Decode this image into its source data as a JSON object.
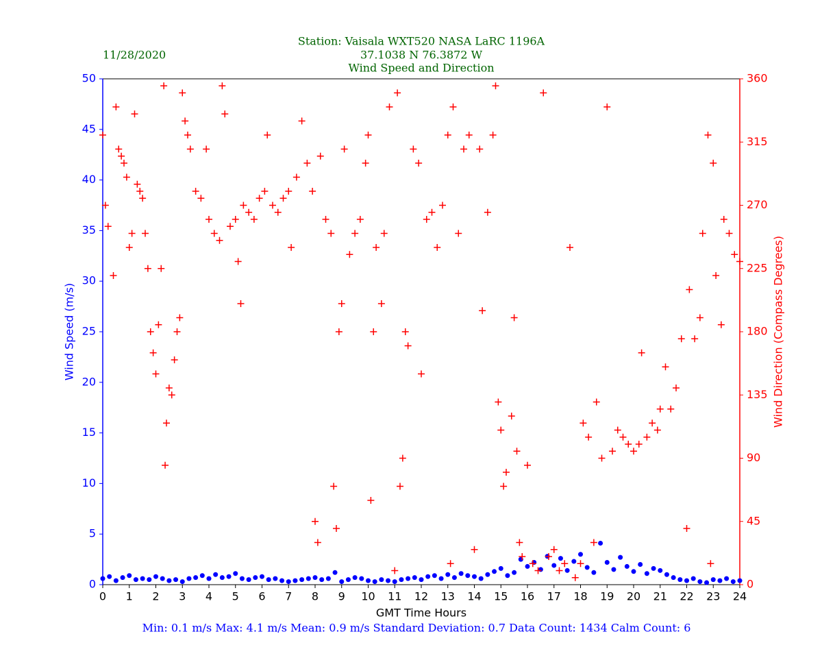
{
  "chart_data": {
    "type": "scatter",
    "title": "Station:  Vaisala WXT520  NASA LaRC 1196A",
    "subtitle": "37.1038 N 76.3872 W",
    "subtitle2": "Wind Speed and Direction",
    "date": "11/28/2020",
    "xlabel": "GMT Time Hours",
    "ylabel": "Wind Speed (m/s)",
    "y2label": "Wind Direction (Compass Degrees)",
    "footer": "Min: 0.1 m/s   Max: 4.1 m/s   Mean: 0.9 m/s  Standard Deviation: 0.7  Data Count: 1434  Calm Count:  6",
    "xlim": [
      0,
      24
    ],
    "xticks": [
      0,
      1,
      2,
      3,
      4,
      5,
      6,
      7,
      8,
      9,
      10,
      11,
      12,
      13,
      14,
      15,
      16,
      17,
      18,
      19,
      20,
      21,
      22,
      23,
      24
    ],
    "ylim": [
      0,
      50
    ],
    "yticks": [
      0,
      5,
      10,
      15,
      20,
      25,
      30,
      35,
      40,
      45,
      50
    ],
    "y2lim": [
      0,
      360
    ],
    "y2ticks": [
      0,
      45,
      90,
      135,
      180,
      225,
      270,
      315,
      360
    ],
    "series": [
      {
        "name": "Wind Speed",
        "color": "#0000ff",
        "marker": "o",
        "axis": "y",
        "x": [
          0,
          0.25,
          0.5,
          0.75,
          1,
          1.25,
          1.5,
          1.75,
          2,
          2.25,
          2.5,
          2.75,
          3,
          3.25,
          3.5,
          3.75,
          4,
          4.25,
          4.5,
          4.75,
          5,
          5.25,
          5.5,
          5.75,
          6,
          6.25,
          6.5,
          6.75,
          7,
          7.25,
          7.5,
          7.75,
          8,
          8.25,
          8.5,
          8.75,
          9,
          9.25,
          9.5,
          9.75,
          10,
          10.25,
          10.5,
          10.75,
          11,
          11.25,
          11.5,
          11.75,
          12,
          12.25,
          12.5,
          12.75,
          13,
          13.25,
          13.5,
          13.75,
          14,
          14.25,
          14.5,
          14.75,
          15,
          15.25,
          15.5,
          15.75,
          16,
          16.25,
          16.5,
          16.75,
          17,
          17.25,
          17.5,
          17.75,
          18,
          18.25,
          18.5,
          18.75,
          19,
          19.25,
          19.5,
          19.75,
          20,
          20.25,
          20.5,
          20.75,
          21,
          21.25,
          21.5,
          21.75,
          22,
          22.25,
          22.5,
          22.75,
          23,
          23.25,
          23.5,
          23.75,
          24
        ],
        "values": [
          0.6,
          0.8,
          0.4,
          0.7,
          0.9,
          0.5,
          0.6,
          0.5,
          0.8,
          0.6,
          0.4,
          0.5,
          0.3,
          0.6,
          0.7,
          0.9,
          0.6,
          1.0,
          0.7,
          0.8,
          1.1,
          0.6,
          0.5,
          0.7,
          0.8,
          0.5,
          0.6,
          0.4,
          0.3,
          0.4,
          0.5,
          0.6,
          0.7,
          0.5,
          0.6,
          1.2,
          0.3,
          0.5,
          0.7,
          0.6,
          0.4,
          0.3,
          0.5,
          0.4,
          0.3,
          0.5,
          0.6,
          0.7,
          0.5,
          0.8,
          0.9,
          0.6,
          1.0,
          0.7,
          1.1,
          0.9,
          0.8,
          0.6,
          1.0,
          1.3,
          1.6,
          0.9,
          1.2,
          2.5,
          1.8,
          2.2,
          1.5,
          2.8,
          1.9,
          2.6,
          1.4,
          2.3,
          3.0,
          1.7,
          1.2,
          4.1,
          2.2,
          1.5,
          2.7,
          1.8,
          1.3,
          2.0,
          1.1,
          1.6,
          1.4,
          1.0,
          0.7,
          0.5,
          0.4,
          0.6,
          0.3,
          0.2,
          0.5,
          0.4,
          0.6,
          0.3,
          0.4
        ]
      },
      {
        "name": "Wind Direction",
        "color": "#ff0000",
        "marker": "+",
        "axis": "y2",
        "x": [
          0.0,
          0.1,
          0.2,
          0.4,
          0.5,
          0.6,
          0.7,
          0.8,
          0.9,
          1.0,
          1.1,
          1.2,
          1.3,
          1.4,
          1.5,
          1.6,
          1.7,
          1.8,
          1.9,
          2.0,
          2.1,
          2.2,
          2.3,
          2.35,
          2.4,
          2.5,
          2.6,
          2.7,
          2.8,
          2.9,
          3.0,
          3.1,
          3.2,
          3.3,
          3.5,
          3.7,
          3.9,
          4.0,
          4.2,
          4.4,
          4.5,
          4.6,
          4.8,
          5.0,
          5.1,
          5.2,
          5.3,
          5.5,
          5.7,
          5.9,
          6.1,
          6.2,
          6.4,
          6.6,
          6.8,
          7.0,
          7.1,
          7.3,
          7.5,
          7.7,
          7.9,
          8.0,
          8.1,
          8.2,
          8.4,
          8.6,
          8.7,
          8.8,
          8.9,
          9.0,
          9.1,
          9.3,
          9.5,
          9.7,
          9.9,
          10.0,
          10.1,
          10.2,
          10.3,
          10.5,
          10.6,
          10.8,
          11.0,
          11.1,
          11.2,
          11.3,
          11.4,
          11.5,
          11.7,
          11.9,
          12.0,
          12.2,
          12.4,
          12.6,
          12.8,
          13.0,
          13.1,
          13.2,
          13.4,
          13.6,
          13.8,
          14.0,
          14.2,
          14.3,
          14.5,
          14.7,
          14.8,
          14.9,
          15.0,
          15.1,
          15.2,
          15.4,
          15.5,
          15.6,
          15.7,
          15.8,
          16.0,
          16.2,
          16.4,
          16.6,
          16.8,
          17.0,
          17.2,
          17.4,
          17.6,
          17.8,
          18.0,
          18.1,
          18.3,
          18.5,
          18.6,
          18.8,
          19.0,
          19.2,
          19.4,
          19.6,
          19.8,
          20.0,
          20.2,
          20.3,
          20.5,
          20.7,
          20.9,
          21.0,
          21.2,
          21.4,
          21.6,
          21.8,
          22.0,
          22.1,
          22.3,
          22.5,
          22.6,
          22.8,
          22.9,
          23.0,
          23.1,
          23.3,
          23.4,
          23.6,
          23.8,
          24.0
        ],
        "values": [
          320,
          270,
          255,
          220,
          340,
          310,
          305,
          300,
          290,
          240,
          250,
          335,
          285,
          280,
          275,
          250,
          225,
          180,
          165,
          150,
          185,
          225,
          355,
          85,
          115,
          140,
          135,
          160,
          180,
          190,
          350,
          330,
          320,
          310,
          280,
          275,
          310,
          260,
          250,
          245,
          355,
          335,
          255,
          260,
          230,
          200,
          270,
          265,
          260,
          275,
          280,
          320,
          270,
          265,
          275,
          280,
          240,
          290,
          330,
          300,
          280,
          45,
          30,
          305,
          260,
          250,
          70,
          40,
          180,
          200,
          310,
          235,
          250,
          260,
          300,
          320,
          60,
          180,
          240,
          200,
          250,
          340,
          10,
          350,
          70,
          90,
          180,
          170,
          310,
          300,
          150,
          260,
          265,
          240,
          270,
          320,
          15,
          340,
          250,
          310,
          320,
          25,
          310,
          195,
          265,
          320,
          355,
          130,
          110,
          70,
          80,
          120,
          190,
          95,
          30,
          20,
          85,
          15,
          10,
          350,
          20,
          25,
          10,
          15,
          240,
          5,
          15,
          115,
          105,
          30,
          130,
          90,
          340,
          95,
          110,
          105,
          100,
          95,
          100,
          165,
          105,
          115,
          110,
          125,
          155,
          125,
          140,
          175,
          40,
          210,
          175,
          190,
          250,
          320,
          15,
          300,
          220,
          185,
          260,
          250,
          235,
          230
        ]
      }
    ]
  }
}
